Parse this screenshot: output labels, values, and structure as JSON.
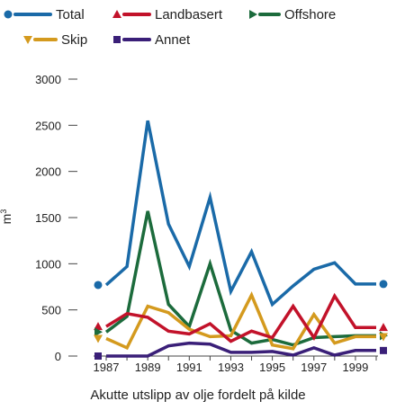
{
  "chart_data": {
    "type": "line",
    "caption": "Akutte utslipp av olje fordelt på kilde",
    "ylabel": "m",
    "ylabel_sup": "3",
    "ylim": [
      0,
      3000
    ],
    "yticks": [
      0,
      500,
      1000,
      1500,
      2000,
      2500,
      3000
    ],
    "x": [
      1987,
      1988,
      1989,
      1990,
      1991,
      1992,
      1993,
      1994,
      1995,
      1996,
      1997,
      1998,
      1999,
      2000
    ],
    "xtick_labels": [
      "1987",
      "1989",
      "1991",
      "1993",
      "1995",
      "1997",
      "1999"
    ],
    "xtick_values": [
      1987,
      1989,
      1991,
      1993,
      1995,
      1997,
      1999
    ],
    "series": [
      {
        "name": "Total",
        "color": "#1a6aa8",
        "marker": "circle",
        "values": [
          770,
          970,
          2550,
          1430,
          970,
          1720,
          700,
          1130,
          560,
          760,
          940,
          1010,
          780,
          780
        ]
      },
      {
        "name": "Landbasert",
        "color": "#c2122a",
        "marker": "triangle-up",
        "values": [
          320,
          460,
          420,
          270,
          240,
          350,
          160,
          270,
          200,
          540,
          200,
          650,
          310,
          310
        ]
      },
      {
        "name": "Offshore",
        "color": "#1c6b3c",
        "marker": "triangle-right",
        "values": [
          260,
          430,
          1570,
          560,
          320,
          1000,
          280,
          140,
          180,
          120,
          200,
          210,
          220,
          220
        ]
      },
      {
        "name": "Skip",
        "color": "#d49a1e",
        "marker": "triangle-down",
        "values": [
          190,
          90,
          540,
          470,
          290,
          210,
          220,
          660,
          120,
          80,
          450,
          140,
          210,
          210
        ]
      },
      {
        "name": "Annet",
        "color": "#3a1f78",
        "marker": "square",
        "values": [
          0,
          0,
          0,
          110,
          140,
          130,
          40,
          40,
          50,
          10,
          90,
          10,
          60,
          60
        ]
      }
    ]
  }
}
